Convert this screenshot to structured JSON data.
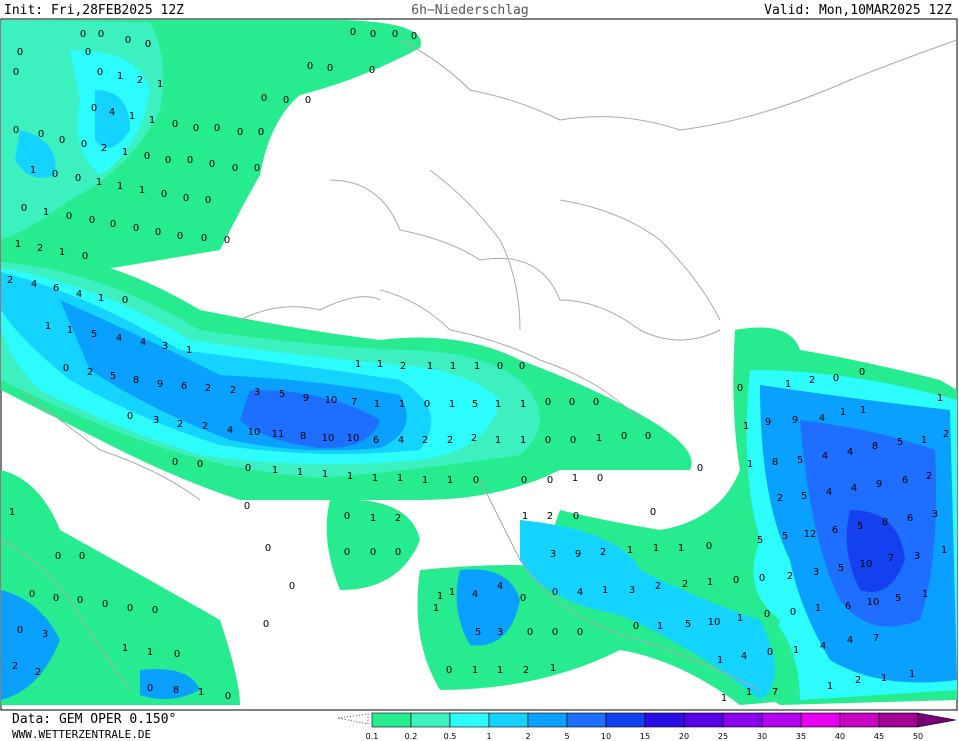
{
  "header": {
    "init": "Init: Fri,28FEB2025 12Z",
    "title": "6h−Niederschlag",
    "valid": "Valid: Mon,10MAR2025 12Z"
  },
  "footer": {
    "data": "Data: GEM OPER 0.150°",
    "site": "WWW.WETTERZENTRALE.DE"
  },
  "legend": {
    "labels": [
      "0.1",
      "0.2",
      "0.5",
      "1",
      "2",
      "5",
      "10",
      "15",
      "20",
      "25",
      "30",
      "35",
      "40",
      "45",
      "50"
    ],
    "colors": [
      "#26ec8f",
      "#3cf0c0",
      "#2cfcfc",
      "#14d4ff",
      "#0aa0ff",
      "#1e6eff",
      "#1440f0",
      "#2a10e6",
      "#5a00e6",
      "#8a00ee",
      "#b400f0",
      "#e600f0",
      "#c800c0",
      "#a00096",
      "#780078"
    ]
  },
  "map": {
    "rows": [
      [
        0,
        0,
        0,
        0,
        0,
        0,
        0,
        1,
        2,
        1,
        0
      ],
      [
        0,
        4,
        1,
        1,
        0,
        0,
        0,
        0,
        0
      ],
      [
        0,
        0,
        0,
        0,
        2,
        1,
        0,
        0,
        0,
        0,
        0,
        0
      ],
      [
        0,
        0,
        0,
        0,
        0,
        0,
        0,
        0,
        0,
        0
      ],
      [
        1,
        0,
        0,
        1,
        1,
        1,
        0,
        0,
        0
      ],
      [
        0,
        1,
        0,
        0,
        0,
        0,
        0,
        0,
        0,
        0
      ],
      [
        1,
        2,
        1,
        0
      ],
      [
        2,
        4,
        6,
        4,
        1,
        0
      ],
      [
        1,
        1,
        5,
        4,
        4,
        3,
        1
      ],
      [
        0,
        2,
        5,
        8,
        9,
        6,
        2,
        2,
        3,
        5,
        9,
        10,
        7,
        1,
        1
      ],
      [
        0,
        3,
        2,
        2,
        4,
        10,
        11,
        8,
        10,
        10,
        6,
        4,
        2,
        2,
        2
      ],
      [
        1,
        1,
        2,
        1,
        1,
        1,
        0,
        0
      ],
      [
        0,
        1,
        5,
        1,
        1,
        0,
        0,
        0
      ],
      [
        1,
        1,
        0,
        0,
        1,
        0,
        0
      ],
      [
        0,
        0,
        0,
        1,
        1,
        1,
        1,
        1,
        1,
        1,
        1,
        0
      ],
      [
        0,
        0,
        1,
        0,
        0
      ],
      [
        0,
        1,
        2,
        1,
        2,
        0,
        0
      ],
      [
        0,
        0,
        0,
        0,
        0
      ],
      [
        3,
        9,
        2,
        1,
        1,
        1,
        0
      ],
      [
        0,
        1,
        2,
        0,
        0,
        1,
        9,
        9,
        4,
        1,
        1,
        1
      ],
      [
        1,
        8,
        5,
        4,
        4,
        8,
        5,
        1,
        2
      ],
      [
        2,
        5,
        4,
        4,
        9,
        6,
        2
      ],
      [
        5,
        5,
        12,
        6,
        5,
        8,
        6,
        3
      ],
      [
        2,
        3,
        5,
        10,
        7,
        3,
        1
      ],
      [
        6,
        10,
        5,
        1,
        4,
        7
      ],
      [
        1,
        1,
        4,
        4,
        0,
        0,
        4,
        1,
        3,
        2,
        2,
        1,
        0,
        0
      ],
      [
        1,
        5,
        3,
        0,
        0,
        0,
        0,
        1,
        5,
        10,
        1,
        0,
        0,
        1
      ],
      [
        0,
        1,
        1,
        2,
        1,
        1,
        4,
        0,
        1,
        4
      ],
      [
        1,
        1,
        7,
        1,
        2,
        1,
        1
      ],
      [
        1,
        0,
        0,
        0,
        0,
        0,
        0,
        0,
        0,
        0,
        3,
        1,
        1,
        0,
        2,
        2,
        0,
        8,
        1,
        0,
        0,
        0
      ]
    ]
  }
}
